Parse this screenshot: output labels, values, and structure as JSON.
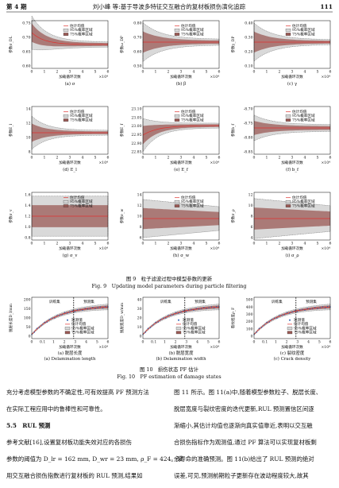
{
  "header": {
    "issue": "第 4 期",
    "running_title": "刘小峰 等:基于导波多特征交互融合的复材板损伤演化追踪",
    "page": "111"
  },
  "figure9": {
    "xlabel": "加载循环次数",
    "x_unit": "×10⁴",
    "xticks": [
      "0",
      "1",
      "2",
      "3",
      "4",
      "5",
      "6"
    ],
    "legend": [
      "估计均值",
      "95%概率区域",
      "75%概率区域"
    ],
    "panels": [
      {
        "ylabel": "参数σ_DL",
        "yticks": [
          "0.75",
          "0.70",
          "0.65",
          "0.60"
        ],
        "sub_caption": "(a) σ"
      },
      {
        "ylabel": "参数ω_DP",
        "yticks": [
          "0.80",
          "0.70",
          "0.60",
          "0.50"
        ],
        "sub_caption": "(b) β"
      },
      {
        "ylabel": "参数γ_DP",
        "yticks": [
          "0.40",
          "0.30",
          "0.20",
          "0.10"
        ],
        "sub_caption": "(c) γ"
      },
      {
        "ylabel": "参数E_l",
        "yticks": [
          "14",
          "12",
          "10",
          "8"
        ],
        "sub_caption": "(d) E_l"
      },
      {
        "ylabel": "参数E_f",
        "yticks": [
          "23.10",
          "23.05",
          "23.00",
          "22.95",
          "22.90",
          "22.85"
        ],
        "sub_caption": "(e) E_f"
      },
      {
        "ylabel": "参数b_f",
        "yticks": [
          "-8.70",
          "-8.75",
          "-8.80",
          "-8.85"
        ],
        "sub_caption": "(f) b_f"
      },
      {
        "ylabel": "参数σ_v",
        "yticks": [
          "1.6",
          "1.4",
          "1.2",
          "1.0",
          "0.8"
        ],
        "sub_caption": "(g) σ_v"
      },
      {
        "ylabel": "参数σ_w",
        "yticks": [
          "14",
          "12",
          "10",
          "8",
          "6"
        ],
        "sub_caption": "(h) σ_w"
      },
      {
        "ylabel": "参数σ_ρ",
        "yticks": [
          "12",
          "10",
          "8",
          "6",
          "4"
        ],
        "sub_caption": "(i) σ_ρ"
      }
    ],
    "caption_cn": "图 9　粒子滤波过程中模型参数的更新",
    "caption_en": "Fig. 9　Updating model parameters during particle filtering"
  },
  "figure10": {
    "xlabel": "加载循环次数",
    "x_unit": "×10⁴",
    "xticks": [
      "0",
      "0.1",
      "1",
      "2",
      "3",
      "4",
      "5",
      "6"
    ],
    "train_label": "训练集",
    "test_label": "预测集",
    "legend": [
      "观测值",
      "估计均值",
      "95%概率区域",
      "75%概率区域"
    ],
    "panels": [
      {
        "ylabel": "脱层长度D_l/mm",
        "yticks": [
          "200",
          "150",
          "100",
          "50",
          "0"
        ],
        "sub_caption_cn": "(a) 脱层长度",
        "sub_caption_en": "(a) Delamination length"
      },
      {
        "ylabel": "脱层宽度D_w/mm",
        "yticks": [
          "40",
          "30",
          "20",
          "10",
          "0"
        ],
        "sub_caption_cn": "(b) 脱层宽度",
        "sub_caption_en": "(b) Delamination width"
      },
      {
        "ylabel": "裂纹密度ρ_F",
        "yticks": [
          "500",
          "400",
          "300",
          "200",
          "100",
          "0"
        ],
        "sub_caption_cn": "(c) 裂纹密度",
        "sub_caption_en": "(c) Crack density"
      }
    ],
    "caption_cn": "图 10　损伤状态 PF 估计",
    "caption_en": "Fig. 10　PF estimation of damage states"
  },
  "body": {
    "left": [
      "充分考虑模型参数的不确定性,可有效提高 PF 预测方法",
      "在实际工程应用中的鲁棒性和可靠性。",
      "5.5　RUL 预测",
      "参考文献[16],设置复材板功能失效对应的各损伤",
      "参数的阈值为 D_lr = 162 mm, D_wr = 23 mm, ρ_F = 424。采",
      "用交互融合损伤指数进行复材板的 RUL 预测,结果如"
    ],
    "right": [
      "图 11 所示。图 11(a)中,随着模型参数粒子、脱层长度、",
      "脱层宽度与裂纹密度的迭代更新,RUL 预测置信区间逐",
      "渐缩小,其估计均值也逐渐向真实值靠近,表明以交互融",
      "合损伤指标作为观测值,通过 PF 算法可以实现复材板剩",
      "余寿命的准确预测。图 11(b)给出了 RUL 预测的绝对",
      "误差,可见,预测前期粒子更新存在波动程度较大,故其"
    ]
  }
}
